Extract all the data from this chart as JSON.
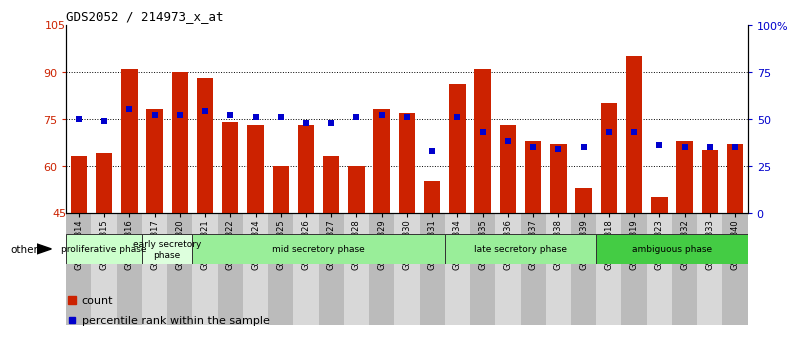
{
  "title": "GDS2052 / 214973_x_at",
  "samples": [
    "GSM109814",
    "GSM109815",
    "GSM109816",
    "GSM109817",
    "GSM109820",
    "GSM109821",
    "GSM109822",
    "GSM109824",
    "GSM109825",
    "GSM109826",
    "GSM109827",
    "GSM109828",
    "GSM109829",
    "GSM109830",
    "GSM109831",
    "GSM109834",
    "GSM109835",
    "GSM109836",
    "GSM109837",
    "GSM109838",
    "GSM109839",
    "GSM109818",
    "GSM109819",
    "GSM109823",
    "GSM109832",
    "GSM109833",
    "GSM109840"
  ],
  "counts": [
    63,
    64,
    91,
    78,
    90,
    88,
    74,
    73,
    60,
    73,
    63,
    60,
    78,
    77,
    55,
    86,
    91,
    73,
    68,
    67,
    53,
    80,
    95,
    50,
    68,
    65,
    67
  ],
  "percentiles_right": [
    50,
    49,
    55,
    52,
    52,
    54,
    52,
    51,
    51,
    48,
    48,
    51,
    52,
    51,
    33,
    51,
    43,
    38,
    35,
    34,
    35,
    43,
    43,
    36,
    35,
    35,
    35
  ],
  "bar_color": "#cc2200",
  "dot_color": "#0000cc",
  "left_ylim": [
    45,
    105
  ],
  "right_ylim": [
    0,
    100
  ],
  "left_yticks": [
    60,
    75,
    90
  ],
  "left_ytick_labels": [
    "60",
    "75",
    "90"
  ],
  "left_extra_top": "105",
  "left_extra_bottom": "45",
  "right_yticks": [
    0,
    25,
    50,
    75,
    100
  ],
  "right_ytick_labels": [
    "0",
    "25",
    "50",
    "75",
    "100%"
  ],
  "phases": [
    {
      "name": "proliferative phase",
      "start": 0,
      "end": 3,
      "color": "#ccffcc"
    },
    {
      "name": "early secretory\nphase",
      "start": 3,
      "end": 5,
      "color": "#ddffdd"
    },
    {
      "name": "mid secretory phase",
      "start": 5,
      "end": 15,
      "color": "#99ee99"
    },
    {
      "name": "late secretory phase",
      "start": 15,
      "end": 21,
      "color": "#99ee99"
    },
    {
      "name": "ambiguous phase",
      "start": 21,
      "end": 27,
      "color": "#44cc44"
    }
  ],
  "phase_border_color": "#333333",
  "grid_dotted_color": "#333333",
  "bar_bottom": 45,
  "other_label": "other"
}
